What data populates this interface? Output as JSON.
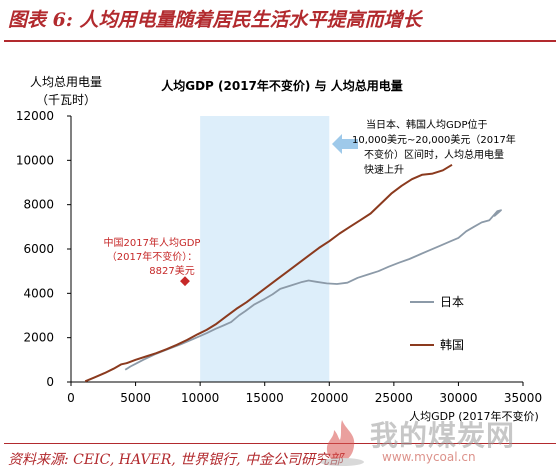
{
  "figure": {
    "title": "图表 6: 人均用电量随着居民生活水平提高而增长",
    "source": "资料来源: CEIC, HAVER, 世界银行, 中金公司研究部"
  },
  "watermark": {
    "brand": "我的煤炭网",
    "url": "www.mycoal.cn"
  },
  "chart_data": {
    "type": "line",
    "title": "人均GDP (2017年不变价) 与 人均总用电量",
    "xlabel": "人均GDP (2017年不变价)",
    "ylabel": "人均总用电量 (千瓦时)",
    "ylabel_lines": [
      "人均总用电量",
      "（千瓦时）"
    ],
    "xlim": [
      0,
      35000
    ],
    "ylim": [
      0,
      12000
    ],
    "x_ticks": [
      0,
      5000,
      10000,
      15000,
      20000,
      25000,
      30000,
      35000
    ],
    "y_ticks": [
      0,
      2000,
      4000,
      6000,
      8000,
      10000,
      12000
    ],
    "grid": false,
    "legend_position": "right",
    "highlight_band": {
      "x_from": 10000,
      "x_to": 20000,
      "color": "#ddeefa"
    },
    "series": [
      {
        "name": "日本",
        "color": "#8c9aa8",
        "points": [
          [
            4200,
            550
          ],
          [
            4600,
            700
          ],
          [
            5000,
            820
          ],
          [
            5600,
            1000
          ],
          [
            6500,
            1250
          ],
          [
            7500,
            1480
          ],
          [
            8500,
            1700
          ],
          [
            9500,
            1950
          ],
          [
            10500,
            2200
          ],
          [
            11200,
            2400
          ],
          [
            11800,
            2550
          ],
          [
            12400,
            2700
          ],
          [
            13000,
            3000
          ],
          [
            13500,
            3200
          ],
          [
            14200,
            3500
          ],
          [
            15000,
            3750
          ],
          [
            15600,
            3950
          ],
          [
            16200,
            4200
          ],
          [
            17000,
            4350
          ],
          [
            17800,
            4500
          ],
          [
            18400,
            4580
          ],
          [
            19000,
            4520
          ],
          [
            19800,
            4450
          ],
          [
            20600,
            4420
          ],
          [
            21400,
            4480
          ],
          [
            22200,
            4700
          ],
          [
            23000,
            4850
          ],
          [
            23800,
            5000
          ],
          [
            24600,
            5200
          ],
          [
            25400,
            5380
          ],
          [
            26200,
            5550
          ],
          [
            27000,
            5750
          ],
          [
            27800,
            5950
          ],
          [
            28600,
            6150
          ],
          [
            29400,
            6350
          ],
          [
            30000,
            6500
          ],
          [
            30600,
            6800
          ],
          [
            31200,
            7000
          ],
          [
            31800,
            7200
          ],
          [
            32400,
            7300
          ],
          [
            33000,
            7700
          ],
          [
            33300,
            7750
          ],
          [
            32800,
            7500
          ],
          [
            33200,
            7700
          ]
        ]
      },
      {
        "name": "韩国",
        "color": "#8b3a1e",
        "points": [
          [
            1100,
            30
          ],
          [
            1800,
            200
          ],
          [
            2600,
            400
          ],
          [
            3300,
            600
          ],
          [
            3900,
            800
          ],
          [
            4300,
            850
          ],
          [
            5000,
            1000
          ],
          [
            5800,
            1150
          ],
          [
            6600,
            1300
          ],
          [
            7400,
            1480
          ],
          [
            8200,
            1680
          ],
          [
            9000,
            1900
          ],
          [
            9800,
            2150
          ],
          [
            10500,
            2350
          ],
          [
            11200,
            2600
          ],
          [
            12000,
            2950
          ],
          [
            12800,
            3300
          ],
          [
            13600,
            3600
          ],
          [
            14400,
            3950
          ],
          [
            15200,
            4300
          ],
          [
            16000,
            4650
          ],
          [
            16800,
            5000
          ],
          [
            17600,
            5350
          ],
          [
            18400,
            5700
          ],
          [
            19200,
            6050
          ],
          [
            20000,
            6350
          ],
          [
            20800,
            6700
          ],
          [
            21600,
            7000
          ],
          [
            22400,
            7300
          ],
          [
            23200,
            7600
          ],
          [
            24000,
            8050
          ],
          [
            24800,
            8500
          ],
          [
            25600,
            8850
          ],
          [
            26400,
            9150
          ],
          [
            27200,
            9350
          ],
          [
            28000,
            9400
          ],
          [
            28800,
            9550
          ],
          [
            29500,
            9800
          ]
        ]
      }
    ],
    "annotations": {
      "china_point": {
        "x": 8827,
        "y": 4550,
        "color": "#c62828",
        "label": [
          "中国2017年人均GDP",
          "（2017年不变价）：",
          "8827美元"
        ]
      },
      "band_note": [
        "当日本、韩国人均GDP位于",
        "10,000美元~20,000美元（2017年",
        "不变价）区间时，人均总用电量",
        "快速上升"
      ],
      "arrow_color": "#9ec9ea"
    }
  }
}
